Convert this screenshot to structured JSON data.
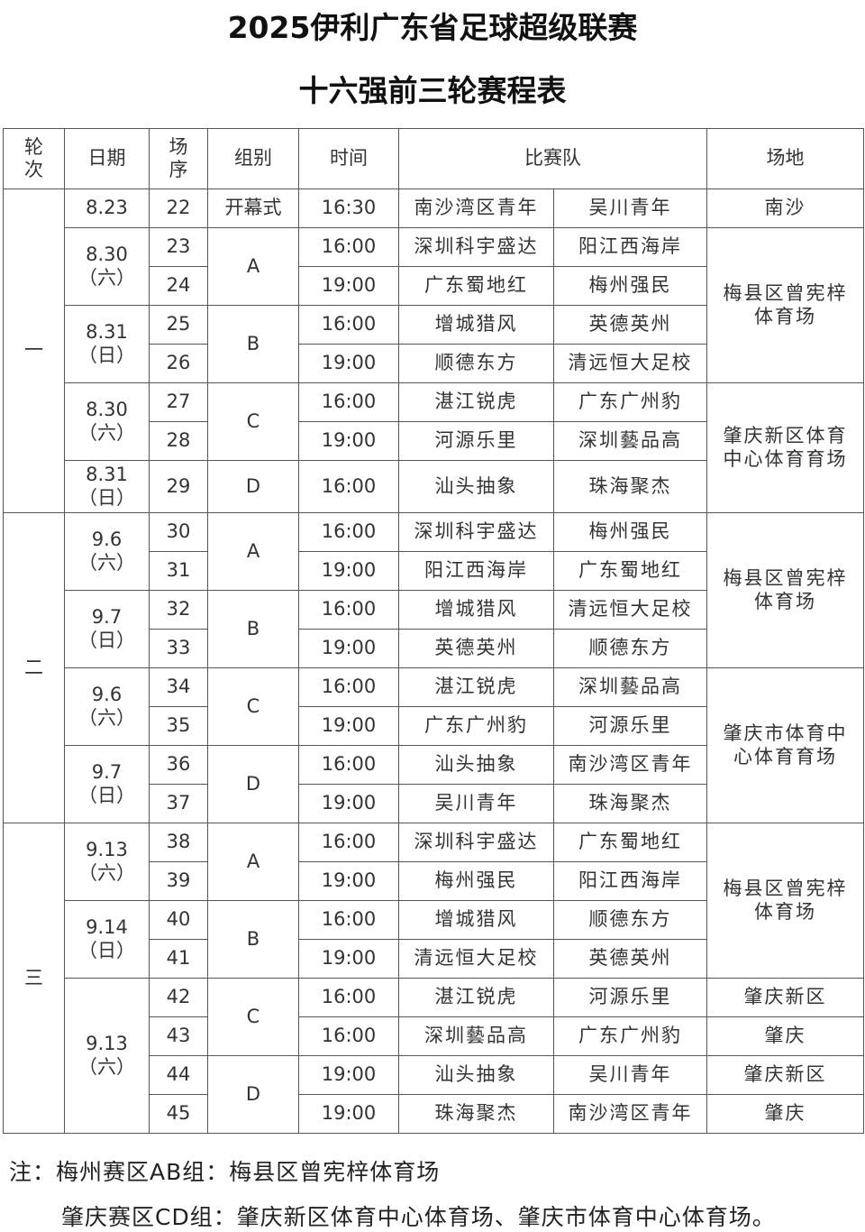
{
  "title": {
    "line1": "2025伊利广东省足球超级联赛",
    "line2": "十六强前三轮赛程表"
  },
  "headers": {
    "round": "轮\n次",
    "date": "日期",
    "no": "场\n序",
    "group": "组别",
    "time": "时间",
    "teams": "比赛队",
    "venue": "场地"
  },
  "rounds": [
    {
      "label": "一",
      "matches": [
        {
          "date": "8.23",
          "day": "",
          "no": "22",
          "group": "开幕式",
          "time": "16:30",
          "home": "南沙湾区青年",
          "away": "吴川青年",
          "venue": "南沙"
        },
        {
          "date": "8.30",
          "day": "（六）",
          "no": "23",
          "group": "A",
          "time": "16:00",
          "home": "深圳科宇盛达",
          "away": "阳江西海岸",
          "venue": "梅县区曾宪梓\n体育场"
        },
        {
          "date": "8.30",
          "day": "（六）",
          "no": "24",
          "group": "A",
          "time": "19:00",
          "home": "广东蜀地红",
          "away": "梅州强民",
          "venue": "梅县区曾宪梓\n体育场"
        },
        {
          "date": "8.31",
          "day": "（日）",
          "no": "25",
          "group": "B",
          "time": "16:00",
          "home": "增城猎风",
          "away": "英德英州",
          "venue": "梅县区曾宪梓\n体育场"
        },
        {
          "date": "8.31",
          "day": "（日）",
          "no": "26",
          "group": "B",
          "time": "19:00",
          "home": "顺德东方",
          "away": "清远恒大足校",
          "venue": "梅县区曾宪梓\n体育场"
        },
        {
          "date": "8.30",
          "day": "（六）",
          "no": "27",
          "group": "C",
          "time": "16:00",
          "home": "湛江锐虎",
          "away": "广东广州豹",
          "venue": "肇庆新区体育\n中心体育育场"
        },
        {
          "date": "8.30",
          "day": "（六）",
          "no": "28",
          "group": "C",
          "time": "19:00",
          "home": "河源乐里",
          "away": "深圳藝品高",
          "venue": "肇庆新区体育\n中心体育育场"
        },
        {
          "date": "8.31",
          "day": "（日）",
          "no": "29",
          "group": "D",
          "time": "16:00",
          "home": "汕头抽象",
          "away": "珠海聚杰",
          "venue": "肇庆新区体育\n中心体育育场"
        }
      ]
    },
    {
      "label": "二",
      "matches": [
        {
          "date": "9.6",
          "day": "（六）",
          "no": "30",
          "group": "A",
          "time": "16:00",
          "home": "深圳科宇盛达",
          "away": "梅州强民",
          "venue": "梅县区曾宪梓\n体育场"
        },
        {
          "date": "9.6",
          "day": "（六）",
          "no": "31",
          "group": "A",
          "time": "19:00",
          "home": "阳江西海岸",
          "away": "广东蜀地红",
          "venue": "梅县区曾宪梓\n体育场"
        },
        {
          "date": "9.7",
          "day": "（日）",
          "no": "32",
          "group": "B",
          "time": "16:00",
          "home": "增城猎风",
          "away": "清远恒大足校",
          "venue": "梅县区曾宪梓\n体育场"
        },
        {
          "date": "9.7",
          "day": "（日）",
          "no": "33",
          "group": "B",
          "time": "19:00",
          "home": "英德英州",
          "away": "顺德东方",
          "venue": "梅县区曾宪梓\n体育场"
        },
        {
          "date": "9.6",
          "day": "（六）",
          "no": "34",
          "group": "C",
          "time": "16:00",
          "home": "湛江锐虎",
          "away": "深圳藝品高",
          "venue": "肇庆市体育中\n心体育育场"
        },
        {
          "date": "9.6",
          "day": "（六）",
          "no": "35",
          "group": "C",
          "time": "19:00",
          "home": "广东广州豹",
          "away": "河源乐里",
          "venue": "肇庆市体育中\n心体育育场"
        },
        {
          "date": "9.7",
          "day": "（日）",
          "no": "36",
          "group": "D",
          "time": "16:00",
          "home": "汕头抽象",
          "away": "南沙湾区青年",
          "venue": "肇庆市体育中\n心体育育场"
        },
        {
          "date": "9.7",
          "day": "（日）",
          "no": "37",
          "group": "D",
          "time": "19:00",
          "home": "吴川青年",
          "away": "珠海聚杰",
          "venue": "肇庆市体育中\n心体育育场"
        }
      ]
    },
    {
      "label": "三",
      "matches": [
        {
          "date": "9.13",
          "day": "（六）",
          "no": "38",
          "group": "A",
          "time": "16:00",
          "home": "深圳科宇盛达",
          "away": "广东蜀地红",
          "venue": "梅县区曾宪梓\n体育场"
        },
        {
          "date": "9.13",
          "day": "（六）",
          "no": "39",
          "group": "A",
          "time": "19:00",
          "home": "梅州强民",
          "away": "阳江西海岸",
          "venue": "梅县区曾宪梓\n体育场"
        },
        {
          "date": "9.14",
          "day": "（日）",
          "no": "40",
          "group": "B",
          "time": "16:00",
          "home": "增城猎风",
          "away": "顺德东方",
          "venue": "梅县区曾宪梓\n体育场"
        },
        {
          "date": "9.14",
          "day": "（日）",
          "no": "41",
          "group": "B",
          "time": "19:00",
          "home": "清远恒大足校",
          "away": "英德英州",
          "venue": "梅县区曾宪梓\n体育场"
        },
        {
          "date": "9.13 ",
          "day": "（六）",
          "no": "42",
          "group": "C",
          "time": "16:00",
          "home": "湛江锐虎",
          "away": "河源乐里",
          "venue": "肇庆新区"
        },
        {
          "date": "9.13 ",
          "day": "（六）",
          "no": "43",
          "group": "C",
          "time": "16:00",
          "home": "深圳藝品高",
          "away": "广东广州豹",
          "venue": "肇庆"
        },
        {
          "date": "9.13 ",
          "day": "（六）",
          "no": "44",
          "group": "D",
          "time": "19:00",
          "home": "汕头抽象",
          "away": "吴川青年",
          "venue": "肇庆新区"
        },
        {
          "date": "9.13 ",
          "day": "（六）",
          "no": "45",
          "group": "D",
          "time": "19:00",
          "home": "珠海聚杰",
          "away": "南沙湾区青年",
          "venue": "肇庆"
        }
      ]
    }
  ],
  "notes": {
    "line1": "注：梅州赛区AB组：梅县区曾宪梓体育场",
    "line2": "肇庆赛区CD组：肇庆新区体育中心体育场、肇庆市体育中心体育场。"
  }
}
